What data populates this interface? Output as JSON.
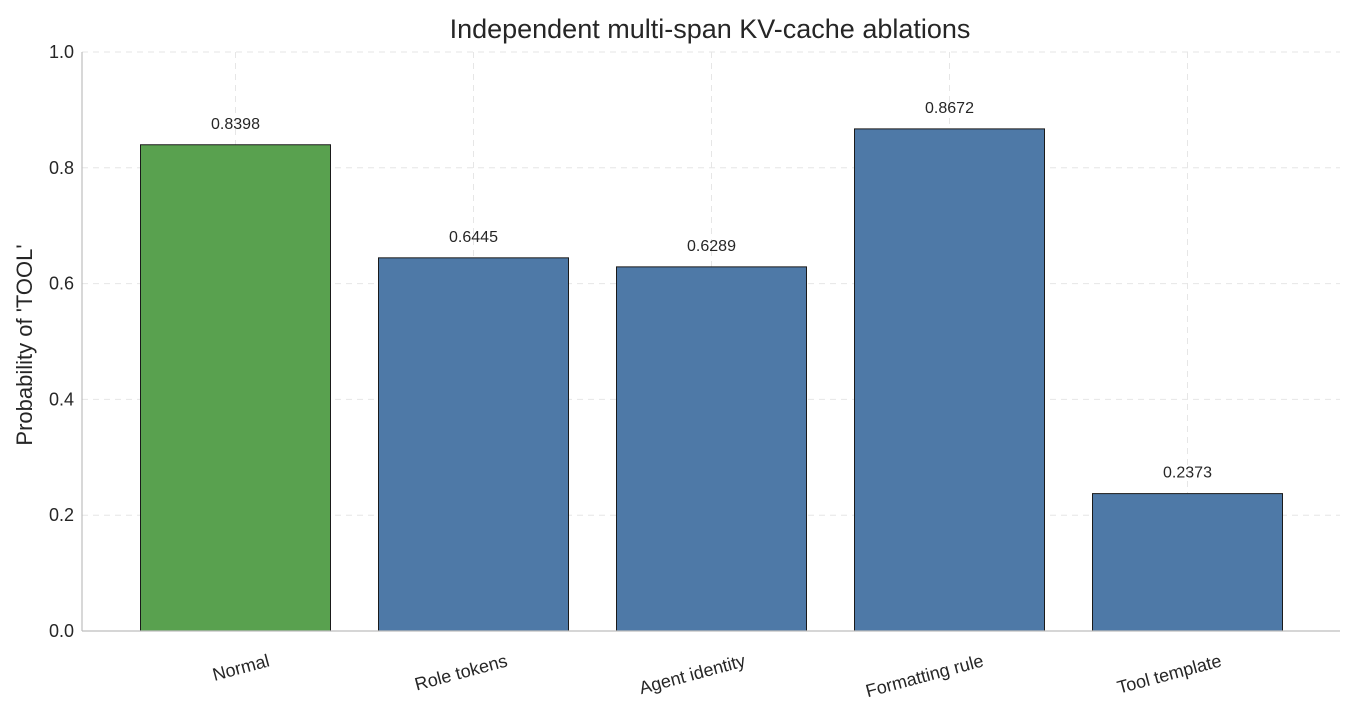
{
  "chart_data": {
    "type": "bar",
    "title": "Independent multi-span KV-cache ablations",
    "xlabel": "",
    "ylabel": "Probability of 'TOOL'",
    "categories": [
      "Normal",
      "Role tokens",
      "Agent identity",
      "Formatting rule",
      "Tool template"
    ],
    "values": [
      0.8398,
      0.6445,
      0.6289,
      0.8672,
      0.2373
    ],
    "value_labels": [
      "0.8398",
      "0.6445",
      "0.6289",
      "0.8672",
      "0.2373"
    ],
    "ylim": [
      0,
      1.0
    ],
    "yticks": [
      "0.0",
      "0.2",
      "0.4",
      "0.6",
      "0.8",
      "1.0"
    ],
    "colors": [
      "#59a14f",
      "#4e79a7",
      "#4e79a7",
      "#4e79a7",
      "#4e79a7"
    ],
    "grid": true
  }
}
